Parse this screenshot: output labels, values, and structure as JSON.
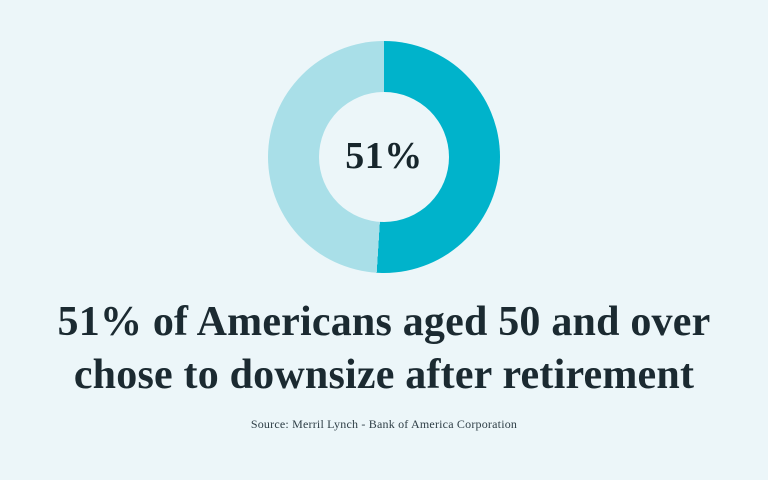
{
  "page": {
    "background_color": "#ecf6f9",
    "headline": {
      "line1": "51% of Americans aged 50 and over",
      "line2": "chose to downsize after retirement",
      "full_text": "51% of Americans aged 50 and over chose to downsize after retirement",
      "text_color": "#1b2a31"
    },
    "source_text": "Source: Merril Lynch - Bank of America Corporation"
  },
  "chart_data": {
    "type": "pie",
    "subtype": "donut",
    "values": [
      51,
      49
    ],
    "unit": "%",
    "segments": [
      {
        "value": 51,
        "color": "#00b3cb"
      },
      {
        "value": 49,
        "color": "#a9dfe8"
      }
    ],
    "center_label": "51%",
    "hole_color": "#ecf6f9",
    "start_angle_deg": 0,
    "direction": "clockwise",
    "legend": "none",
    "title": "51% of Americans aged 50 and over chose to downsize after retirement"
  }
}
